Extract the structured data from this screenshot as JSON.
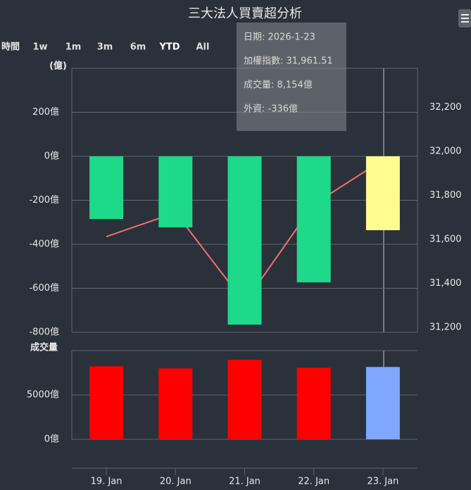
{
  "chart_data": [
    {
      "type": "bar",
      "title": "三大法人買賣超分析",
      "y_axis_label": "(億)",
      "categories": [
        "19. Jan",
        "20. Jan",
        "21. Jan",
        "22. Jan",
        "23. Jan"
      ],
      "series": [
        {
          "type": "bar",
          "colors": [
            "#1fd98a",
            "#1fd98a",
            "#1fd98a",
            "#1fd98a",
            "#fffb8f"
          ],
          "values": [
            -285,
            -323,
            -765,
            -573,
            -336
          ]
        },
        {
          "type": "line",
          "axis": "y2",
          "color": "#f07070",
          "values": [
            31613,
            31722,
            31312,
            31760,
            31961.51
          ]
        }
      ],
      "ylim": [
        -800,
        400
      ],
      "yticks": [
        {
          "value": -800,
          "label": "-800億"
        },
        {
          "value": -600,
          "label": "-600億"
        },
        {
          "value": -400,
          "label": "-400億"
        },
        {
          "value": -200,
          "label": "-200億"
        },
        {
          "value": 0,
          "label": "0億"
        },
        {
          "value": 200,
          "label": "200億"
        }
      ],
      "y2lim": [
        31178,
        32378
      ],
      "y2ticks": [
        {
          "value": 31200,
          "label": "31,200"
        },
        {
          "value": 31400,
          "label": "31,400"
        },
        {
          "value": 31600,
          "label": "31,600"
        },
        {
          "value": 31800,
          "label": "31,800"
        },
        {
          "value": 32000,
          "label": "32,000"
        },
        {
          "value": 32200,
          "label": "32,200"
        }
      ],
      "grid": true
    },
    {
      "type": "bar",
      "y_axis_label": "成交量",
      "colors": [
        "#ff0000",
        "#ff0000",
        "#ff0000",
        "#ff0000",
        "#7fa7ff"
      ],
      "values": [
        8226,
        7984,
        8952,
        8065,
        8154
      ],
      "ylim": [
        0,
        10000
      ],
      "yticks": [
        {
          "value": 0,
          "label": "0億"
        },
        {
          "value": 5000,
          "label": "5000億"
        }
      ],
      "grid": true
    }
  ],
  "range_selector": {
    "label": "時間",
    "buttons": [
      "1w",
      "1m",
      "3m",
      "6m",
      "YTD",
      "All"
    ]
  },
  "tooltip": [
    "日期: 2026-1-23",
    "加權指數: 31,961.51",
    "成交量: 8,154億",
    "外資: -336億"
  ]
}
